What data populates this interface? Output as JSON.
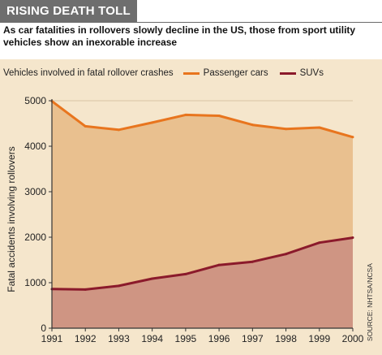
{
  "header": {
    "title": "RISING DEATH TOLL",
    "subtitle": "As car fatalities in rollovers slowly decline in the US, those from sport utility vehicles show an inexorable increase"
  },
  "legend": {
    "title": "Vehicles involved in fatal rollover crashes"
  },
  "source": "SOURCE: NHTSA/NCSA",
  "colors": {
    "passenger": "#e8751e",
    "suv": "#8b1a2b",
    "passenger_fill": "#e9c08f",
    "suv_fill": "#cf9583",
    "panel": "#f5e6cc"
  },
  "chart_data": {
    "type": "area",
    "title": "",
    "xlabel": "",
    "ylabel": "Fatal accidents involving rollovers",
    "x": [
      1991,
      1992,
      1993,
      1994,
      1995,
      1996,
      1997,
      1998,
      1999,
      2000
    ],
    "xticks": [
      "1991",
      "1992",
      "1993",
      "1994",
      "1995",
      "1996",
      "1997",
      "1998",
      "1999",
      "2000"
    ],
    "yticks": [
      "0",
      "1000",
      "2000",
      "3000",
      "4000",
      "5000"
    ],
    "ylim": [
      0,
      5000
    ],
    "grid": true,
    "legend_position": "top",
    "series": [
      {
        "name": "Passenger cars",
        "values": [
          4990,
          4440,
          4360,
          4520,
          4690,
          4670,
          4470,
          4380,
          4410,
          4200
        ]
      },
      {
        "name": "SUVs",
        "values": [
          860,
          850,
          930,
          1090,
          1190,
          1390,
          1460,
          1630,
          1880,
          1990
        ]
      }
    ]
  }
}
